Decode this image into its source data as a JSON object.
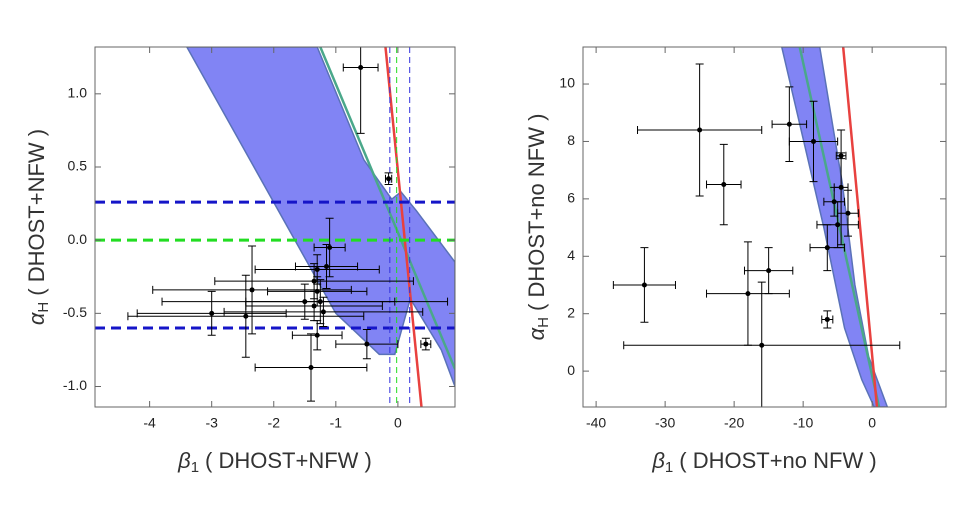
{
  "chart_data": [
    {
      "type": "scatter",
      "x_label": {
        "symbol": "β",
        "sub": "1",
        "text": "( DHOST+NFW )"
      },
      "y_label": {
        "symbol": "α",
        "sub": "H",
        "text": "( DHOST+NFW )"
      },
      "xlim": [
        -4.88,
        0.92
      ],
      "ylim": [
        -1.14,
        1.32
      ],
      "xticks": [
        -4,
        -3,
        -2,
        -1,
        0
      ],
      "yticks": [
        {
          "value": -1,
          "label": "-1.0"
        },
        {
          "value": -0.5,
          "label": "-0.5"
        },
        {
          "value": 0,
          "label": "0.0"
        },
        {
          "value": 0.5,
          "label": "0.5"
        },
        {
          "value": 1,
          "label": "1.0"
        }
      ],
      "region": {
        "color": "#6b6ef2",
        "x": [
          -3.4,
          -1.3,
          -0.55,
          -0.1,
          0.05,
          0.3,
          0.92,
          0.92,
          0.7,
          0.2,
          -0.05,
          -0.3,
          -1.0
        ],
        "y": [
          1.32,
          1.32,
          0.55,
          0.28,
          0.33,
          0.2,
          -0.15,
          -1.0,
          -0.75,
          -0.4,
          -0.78,
          -0.78,
          -0.5
        ]
      },
      "lines": [
        {
          "color": "#4aa88a",
          "x": [
            -1.25,
            0.92
          ],
          "y": [
            1.32,
            -0.88
          ]
        },
        {
          "color": "#e8413f",
          "x": [
            -0.2,
            0.38
          ],
          "y": [
            1.32,
            -1.14
          ]
        }
      ],
      "hlines": [
        {
          "value": 0.26,
          "color": "#1515c8"
        },
        {
          "value": -0.6,
          "color": "#1515c8"
        },
        {
          "value": 0,
          "color": "#22dd22"
        }
      ],
      "vlines": [
        {
          "value": -0.13,
          "color": "#3333dd"
        },
        {
          "value": 0.19,
          "color": "#3333dd"
        },
        {
          "value": -0.02,
          "color": "#22dd22"
        }
      ],
      "points": {
        "color": "#000000",
        "x": [
          -0.6,
          -0.15,
          0.45,
          -1.1,
          -1.15,
          -1.3,
          -1.35,
          -1.3,
          -2.35,
          -1.5,
          -1.25,
          -1.35,
          -1.2,
          -3.0,
          -2.45,
          -1.3,
          -0.5,
          -1.4
        ],
        "y": [
          1.18,
          0.42,
          -0.71,
          -0.05,
          -0.18,
          -0.2,
          -0.28,
          -0.35,
          -0.34,
          -0.42,
          -0.42,
          -0.45,
          -0.49,
          -0.5,
          -0.52,
          -0.65,
          -0.71,
          -0.87
        ],
        "xerr": [
          0.28,
          0.05,
          0.08,
          0.25,
          0.5,
          1.0,
          1.6,
          0.8,
          1.6,
          2.3,
          1.2,
          1.1,
          1.6,
          1.2,
          1.9,
          0.4,
          0.5,
          0.9
        ],
        "yerr": [
          0.45,
          0.04,
          0.04,
          0.2,
          0.15,
          0.1,
          0.12,
          0.1,
          0.3,
          0.12,
          0.15,
          0.1,
          0.1,
          0.15,
          0.28,
          0.1,
          0.1,
          0.23
        ]
      }
    },
    {
      "type": "scatter",
      "x_label": {
        "symbol": "β",
        "sub": "1",
        "text": "( DHOST+no NFW )"
      },
      "y_label": {
        "symbol": "α",
        "sub": "H",
        "text": "( DHOST+no NFW )"
      },
      "xlim": [
        -41.9,
        10.7
      ],
      "ylim": [
        -1.25,
        11.29
      ],
      "xticks": [
        -40,
        -30,
        -20,
        -10,
        0
      ],
      "yticks": [
        0,
        2,
        4,
        6,
        8,
        10
      ],
      "region": {
        "color": "#6b6ef2",
        "x": [
          -13.1,
          -7.6,
          -4.3,
          -2.5,
          -0.5,
          2.2,
          0.3,
          -1.5,
          -4,
          -7
        ],
        "y": [
          11.29,
          11.29,
          6.5,
          3,
          0.5,
          -1.25,
          -1.25,
          -0.3,
          1.5,
          5
        ]
      },
      "lines": [
        {
          "color": "#4aa88a",
          "x": [
            -10.5,
            1
          ],
          "y": [
            11.29,
            -1.25
          ]
        },
        {
          "color": "#e8413f",
          "x": [
            -4.2,
            0.7
          ],
          "y": [
            11.29,
            -1.25
          ]
        }
      ],
      "hlines": [],
      "vlines": [],
      "points": {
        "color": "#000000",
        "x": [
          -25,
          -12,
          -8.5,
          -21.5,
          -4.5,
          -4.5,
          -5.5,
          -3.5,
          -5,
          -6.5,
          -33,
          -15,
          -18,
          -6.5,
          -16
        ],
        "y": [
          8.4,
          8.6,
          8,
          6.5,
          7.5,
          6.4,
          5.9,
          5.5,
          5.1,
          4.3,
          3,
          3.5,
          2.7,
          1.8,
          0.9
        ],
        "xerr": [
          9,
          2.5,
          3.5,
          2.5,
          0.7,
          1,
          1.5,
          1.5,
          3,
          2.5,
          4.5,
          3.5,
          6,
          0.8,
          20
        ],
        "yerr": [
          2.3,
          1.3,
          1.4,
          1.4,
          0.1,
          2,
          0.5,
          0.8,
          0.8,
          0.8,
          1.3,
          0.8,
          1.8,
          0.3,
          2.2
        ]
      }
    }
  ]
}
